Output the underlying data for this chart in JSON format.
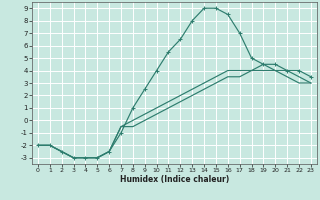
{
  "title": "",
  "xlabel": "Humidex (Indice chaleur)",
  "bg_color": "#c8e8e0",
  "grid_color": "#ffffff",
  "line_color": "#2e7d6e",
  "xlim": [
    -0.5,
    23.5
  ],
  "ylim": [
    -3.5,
    9.5
  ],
  "xticks": [
    0,
    1,
    2,
    3,
    4,
    5,
    6,
    7,
    8,
    9,
    10,
    11,
    12,
    13,
    14,
    15,
    16,
    17,
    18,
    19,
    20,
    21,
    22,
    23
  ],
  "yticks": [
    -3,
    -2,
    -1,
    0,
    1,
    2,
    3,
    4,
    5,
    6,
    7,
    8,
    9
  ],
  "curve1_x": [
    0,
    1,
    2,
    3,
    4,
    5,
    6,
    7,
    8,
    9,
    10,
    11,
    12,
    13,
    14,
    15,
    16,
    17,
    18,
    19,
    20,
    21,
    22,
    23
  ],
  "curve1_y": [
    -2,
    -2,
    -2.5,
    -3,
    -3,
    -3,
    -2.5,
    -1,
    1,
    2.5,
    4,
    5.5,
    6.5,
    8,
    9,
    9,
    8.5,
    7,
    5,
    4.5,
    4.5,
    4,
    4,
    3.5
  ],
  "curve2_x": [
    0,
    1,
    2,
    3,
    4,
    5,
    6,
    7,
    8,
    9,
    10,
    11,
    12,
    13,
    14,
    15,
    16,
    17,
    18,
    19,
    20,
    21,
    22,
    23
  ],
  "curve2_y": [
    -2,
    -2,
    -2.5,
    -3,
    -3,
    -3,
    -2.5,
    -0.5,
    0,
    0.5,
    1,
    1.5,
    2,
    2.5,
    3,
    3.5,
    4,
    4,
    4,
    4.5,
    4,
    4,
    3.5,
    3
  ],
  "curve3_x": [
    0,
    1,
    2,
    3,
    4,
    5,
    6,
    7,
    8,
    9,
    10,
    11,
    12,
    13,
    14,
    15,
    16,
    17,
    18,
    19,
    20,
    21,
    22,
    23
  ],
  "curve3_y": [
    -2,
    -2,
    -2.5,
    -3,
    -3,
    -3,
    -2.5,
    -0.5,
    -0.5,
    0,
    0.5,
    1,
    1.5,
    2,
    2.5,
    3,
    3.5,
    3.5,
    4,
    4,
    4,
    3.5,
    3,
    3
  ]
}
